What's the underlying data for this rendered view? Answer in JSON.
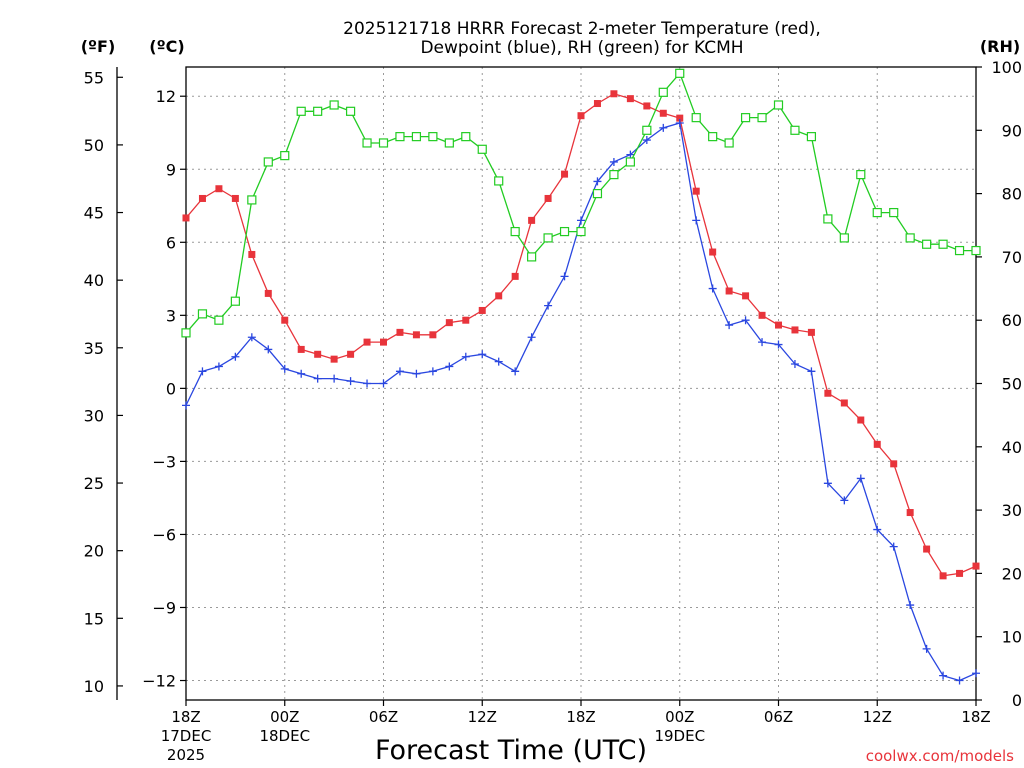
{
  "title_line1": "2025121718 HRRR Forecast 2-meter Temperature (red),",
  "title_line2": "Dewpoint (blue), RH (green) for KCMH",
  "credit": "coolwx.com/models",
  "chart_data": {
    "type": "line",
    "title": "2025121718 HRRR Forecast 2-meter Temperature (red), Dewpoint (blue), RH (green) for KCMH",
    "xlabel": "Forecast Time (UTC)",
    "x_hours": [
      0,
      1,
      2,
      3,
      4,
      5,
      6,
      7,
      8,
      9,
      10,
      11,
      12,
      13,
      14,
      15,
      16,
      17,
      18,
      19,
      20,
      21,
      22,
      23,
      24,
      25,
      26,
      27,
      28,
      29,
      30,
      31,
      32,
      33,
      34,
      35,
      36,
      37,
      38,
      39,
      40,
      41,
      42,
      43,
      44,
      45,
      46,
      47,
      48
    ],
    "xlim": [
      0,
      48
    ],
    "x_ticks": [
      {
        "hour": 0,
        "lines": [
          "18Z",
          "17DEC",
          "2025"
        ]
      },
      {
        "hour": 6,
        "lines": [
          "00Z",
          "18DEC"
        ]
      },
      {
        "hour": 12,
        "lines": [
          "06Z"
        ]
      },
      {
        "hour": 18,
        "lines": [
          "12Z"
        ]
      },
      {
        "hour": 24,
        "lines": [
          "18Z"
        ]
      },
      {
        "hour": 30,
        "lines": [
          "00Z",
          "19DEC"
        ]
      },
      {
        "hour": 36,
        "lines": [
          "06Z"
        ]
      },
      {
        "hour": 42,
        "lines": [
          "12Z"
        ]
      },
      {
        "hour": 48,
        "lines": [
          "18Z"
        ]
      }
    ],
    "axis_c": {
      "unit_label": "(ºC)",
      "ylim": [
        -12.8,
        13.2
      ],
      "ticks": [
        12,
        9,
        6,
        3,
        0,
        -3,
        -6,
        -9,
        -12
      ],
      "tick_labels": [
        "12",
        "9",
        "6",
        "3",
        "0",
        "−3",
        "−6",
        "−9",
        "−12"
      ]
    },
    "axis_f": {
      "unit_label": "(ºF)",
      "ticks": [
        55,
        50,
        45,
        40,
        35,
        30,
        25,
        20,
        15,
        10
      ]
    },
    "axis_rh": {
      "unit_label": "(RH)",
      "ylim": [
        0,
        100
      ],
      "ticks": [
        100,
        90,
        80,
        70,
        60,
        50,
        40,
        30,
        20,
        10,
        0
      ]
    },
    "series": [
      {
        "name": "Temperature",
        "axis": "C",
        "color": "#e8343b",
        "marker": "filled-square",
        "values": [
          7.0,
          7.8,
          8.2,
          7.8,
          5.5,
          3.9,
          2.8,
          1.6,
          1.4,
          1.2,
          1.4,
          1.9,
          1.9,
          2.3,
          2.2,
          2.2,
          2.7,
          2.8,
          3.2,
          3.8,
          4.6,
          6.9,
          7.8,
          8.8,
          11.2,
          11.7,
          12.1,
          11.9,
          11.6,
          11.3,
          11.1,
          8.1,
          5.6,
          4.0,
          3.8,
          3.0,
          2.6,
          2.4,
          2.3,
          -0.2,
          -0.6,
          -1.3,
          -2.3,
          -3.1,
          -5.1,
          -6.6,
          -7.7,
          -7.6,
          -7.3
        ]
      },
      {
        "name": "Dewpoint",
        "axis": "C",
        "color": "#2a47e0",
        "marker": "plus",
        "values": [
          -0.7,
          0.7,
          0.9,
          1.3,
          2.1,
          1.6,
          0.8,
          0.6,
          0.4,
          0.4,
          0.3,
          0.2,
          0.2,
          0.7,
          0.6,
          0.7,
          0.9,
          1.3,
          1.4,
          1.1,
          0.7,
          2.1,
          3.4,
          4.6,
          6.9,
          8.5,
          9.3,
          9.6,
          10.2,
          10.7,
          10.9,
          6.9,
          4.1,
          2.6,
          2.8,
          1.9,
          1.8,
          1.0,
          0.7,
          -3.9,
          -4.6,
          -3.7,
          -5.8,
          -6.5,
          -8.9,
          -10.7,
          -11.8,
          -12.0,
          -11.7
        ]
      },
      {
        "name": "RH",
        "axis": "RH",
        "color": "#22cc22",
        "marker": "open-square",
        "values": [
          58,
          61,
          60,
          63,
          79,
          85,
          86,
          93,
          93,
          94,
          93,
          88,
          88,
          89,
          89,
          89,
          88,
          89,
          87,
          82,
          74,
          70,
          73,
          74,
          74,
          80,
          83,
          85,
          90,
          96,
          99,
          92,
          89,
          88,
          92,
          92,
          94,
          90,
          89,
          76,
          73,
          83,
          77,
          77,
          73,
          72,
          72,
          71,
          71
        ]
      }
    ]
  }
}
